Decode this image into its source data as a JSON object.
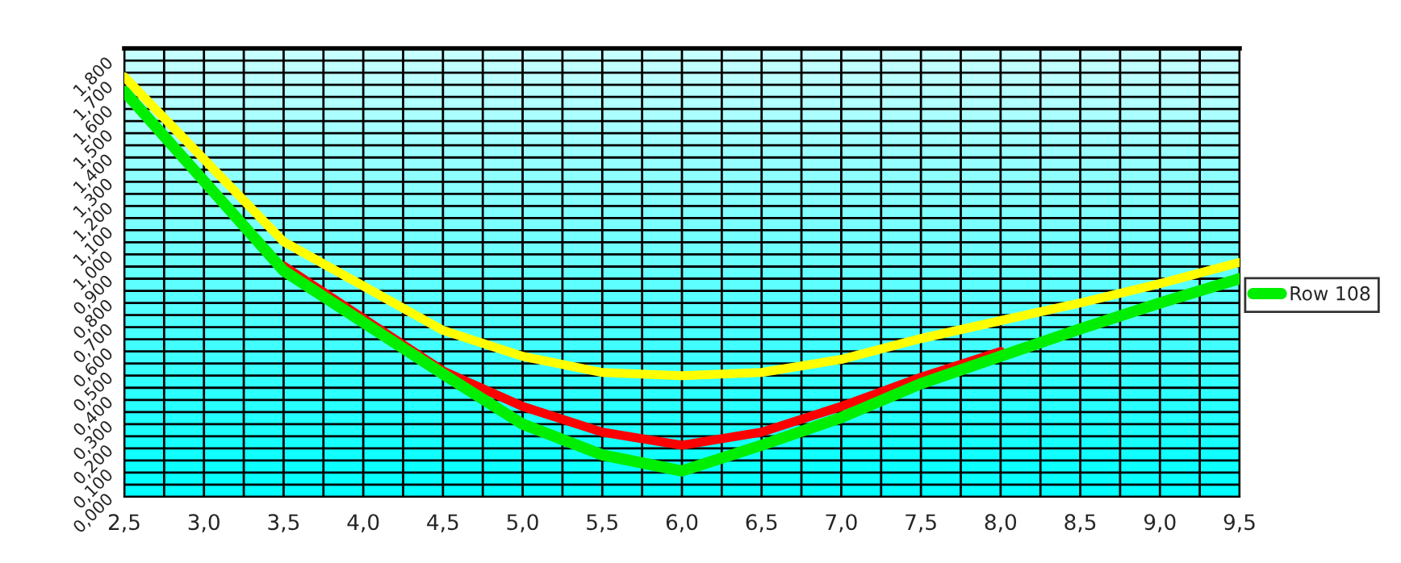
{
  "chart_data": {
    "type": "line",
    "x": [
      2.5,
      3.5,
      4.5,
      5.0,
      5.5,
      6.0,
      6.5,
      7.0,
      7.5,
      8.0,
      8.5,
      9.0,
      9.5
    ],
    "series": [
      {
        "color": "#ffff00",
        "values": [
          1.733,
          1.053,
          0.687,
          0.58,
          0.513,
          0.5,
          0.513,
          0.567,
          0.653,
          0.727,
          0.8,
          0.88,
          0.967
        ]
      },
      {
        "color": "#ff0000",
        "values": [
          null,
          0.953,
          0.52,
          0.373,
          0.267,
          0.213,
          0.267,
          0.373,
          0.493,
          0.6,
          null,
          null,
          null
        ]
      },
      {
        "name": "Row 108",
        "color": "#00ee00",
        "values": [
          1.673,
          0.933,
          0.507,
          0.3,
          0.173,
          0.107,
          0.213,
          0.327,
          0.467,
          0.58,
          0.693,
          0.8,
          0.9
        ]
      }
    ],
    "xlim": [
      2.5,
      9.5
    ],
    "xticks": [
      {
        "value": 2.5,
        "label": "2,5"
      },
      {
        "value": 2.75,
        "label": null
      },
      {
        "value": 3.0,
        "label": "3,0"
      },
      {
        "value": 3.25,
        "label": null
      },
      {
        "value": 3.5,
        "label": "3,5"
      },
      {
        "value": 3.75,
        "label": null
      },
      {
        "value": 4.0,
        "label": "4,0"
      },
      {
        "value": 4.25,
        "label": null
      },
      {
        "value": 4.5,
        "label": "4,5"
      },
      {
        "value": 4.75,
        "label": null
      },
      {
        "value": 5.0,
        "label": "5,0"
      },
      {
        "value": 5.25,
        "label": null
      },
      {
        "value": 5.5,
        "label": "5,5"
      },
      {
        "value": 5.75,
        "label": null
      },
      {
        "value": 6.0,
        "label": "6,0"
      },
      {
        "value": 6.25,
        "label": null
      },
      {
        "value": 6.5,
        "label": "6,5"
      },
      {
        "value": 6.75,
        "label": null
      },
      {
        "value": 7.0,
        "label": "7,0"
      },
      {
        "value": 7.25,
        "label": null
      },
      {
        "value": 7.5,
        "label": "7,5"
      },
      {
        "value": 7.75,
        "label": null
      },
      {
        "value": 8.0,
        "label": "8,0"
      },
      {
        "value": 8.25,
        "label": null
      },
      {
        "value": 8.5,
        "label": "8,5"
      },
      {
        "value": 8.75,
        "label": null
      },
      {
        "value": 9.0,
        "label": "9,0"
      },
      {
        "value": 9.25,
        "label": null
      },
      {
        "value": 9.5,
        "label": "9,5"
      }
    ],
    "ylim": [
      0,
      1.85
    ],
    "yticks": [
      {
        "value": 0,
        "label": "0,000"
      },
      {
        "value": 0.05,
        "label": null
      },
      {
        "value": 0.1,
        "label": "0,100"
      },
      {
        "value": 0.15,
        "label": null
      },
      {
        "value": 0.2,
        "label": "0,200"
      },
      {
        "value": 0.25,
        "label": null
      },
      {
        "value": 0.3,
        "label": "0,300"
      },
      {
        "value": 0.35,
        "label": null
      },
      {
        "value": 0.4,
        "label": "0,400"
      },
      {
        "value": 0.45,
        "label": null
      },
      {
        "value": 0.5,
        "label": "0,500"
      },
      {
        "value": 0.55,
        "label": null
      },
      {
        "value": 0.6,
        "label": "0,600"
      },
      {
        "value": 0.65,
        "label": null
      },
      {
        "value": 0.7,
        "label": "0,700"
      },
      {
        "value": 0.75,
        "label": null
      },
      {
        "value": 0.8,
        "label": "0,800"
      },
      {
        "value": 0.85,
        "label": null
      },
      {
        "value": 0.9,
        "label": "0,900"
      },
      {
        "value": 0.95,
        "label": null
      },
      {
        "value": 1.0,
        "label": "1,000"
      },
      {
        "value": 1.05,
        "label": null
      },
      {
        "value": 1.1,
        "label": "1,100"
      },
      {
        "value": 1.15,
        "label": null
      },
      {
        "value": 1.2,
        "label": "1,200"
      },
      {
        "value": 1.25,
        "label": null
      },
      {
        "value": 1.3,
        "label": "1,300"
      },
      {
        "value": 1.35,
        "label": null
      },
      {
        "value": 1.4,
        "label": "1,400"
      },
      {
        "value": 1.45,
        "label": null
      },
      {
        "value": 1.5,
        "label": "1,500"
      },
      {
        "value": 1.55,
        "label": null
      },
      {
        "value": 1.6,
        "label": "1,600"
      },
      {
        "value": 1.65,
        "label": null
      },
      {
        "value": 1.7,
        "label": "1,700"
      },
      {
        "value": 1.75,
        "label": null
      },
      {
        "value": 1.8,
        "label": "1,800"
      }
    ],
    "grid": true,
    "legend": "right",
    "line_style": "solid",
    "marker": "none"
  }
}
